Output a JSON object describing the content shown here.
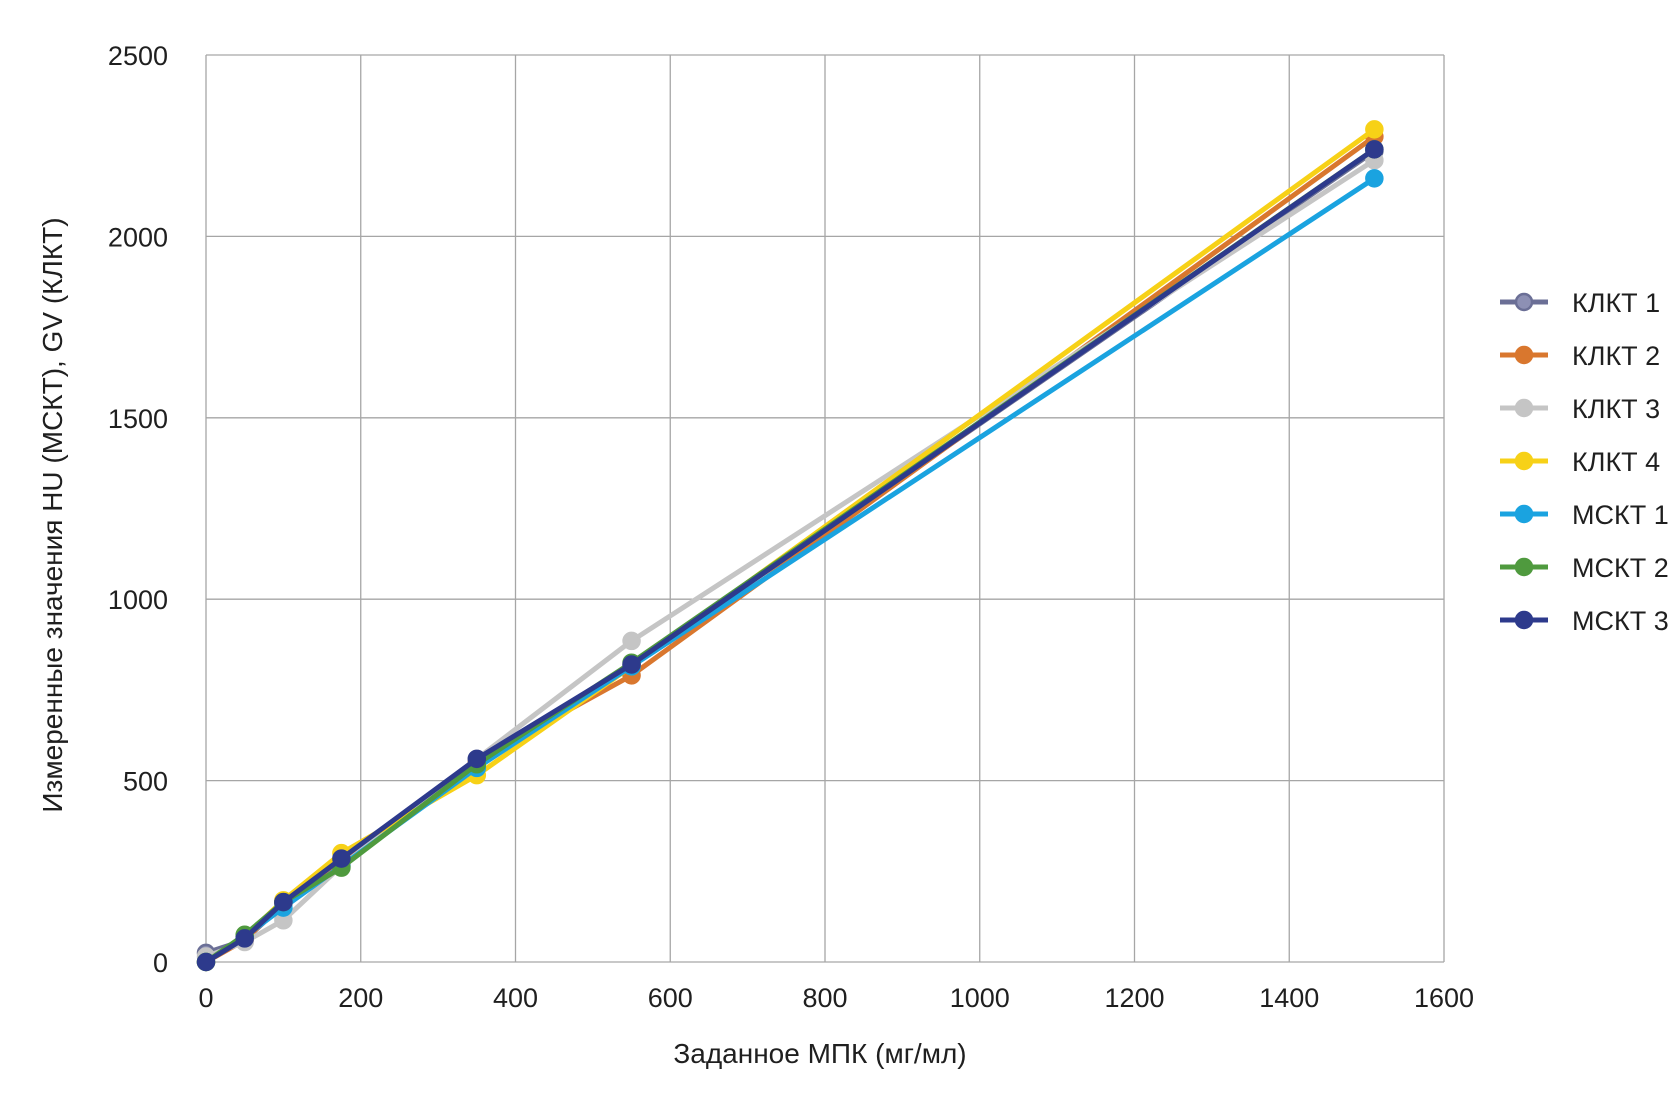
{
  "chart_data": {
    "type": "line",
    "title": "",
    "xlabel": "Заданное МПК (мг/мл)",
    "ylabel": "Измеренные значения HU (МСКТ), GV (КЛКТ)",
    "xlim": [
      0,
      1600
    ],
    "ylim": [
      0,
      2500
    ],
    "x_ticks": [
      "0",
      "200",
      "400",
      "600",
      "800",
      "1000",
      "1200",
      "1400",
      "1600"
    ],
    "y_ticks": [
      "0",
      "500",
      "1000",
      "1500",
      "2000",
      "2500"
    ],
    "grid": true,
    "legend_position": "right",
    "x": [
      0,
      50,
      100,
      175,
      350,
      550,
      1510
    ],
    "series": [
      {
        "name": "КЛКТ 1",
        "color": "#6b6f96",
        "marker_fill": "#8d90b4",
        "values": [
          25,
          60,
          160,
          275,
          555,
          820,
          2235
        ]
      },
      {
        "name": "КЛКТ 2",
        "color": "#d9772e",
        "marker_fill": "#d9772e",
        "values": [
          0,
          60,
          165,
          270,
          555,
          790,
          2275
        ]
      },
      {
        "name": "КЛКТ 3",
        "color": "#c5c5c5",
        "marker_fill": "#c5c5c5",
        "values": [
          15,
          55,
          115,
          265,
          560,
          885,
          2210
        ]
      },
      {
        "name": "КЛКТ 4",
        "color": "#f7d117",
        "marker_fill": "#f7d117",
        "values": [
          0,
          70,
          170,
          300,
          515,
          815,
          2295
        ]
      },
      {
        "name": "МСКТ 1",
        "color": "#1aa3e0",
        "marker_fill": "#1aa3e0",
        "values": [
          0,
          70,
          150,
          265,
          535,
          815,
          2160
        ]
      },
      {
        "name": "МСКТ 2",
        "color": "#4f9a3e",
        "marker_fill": "#4f9a3e",
        "values": [
          0,
          75,
          165,
          260,
          545,
          825,
          2240
        ]
      },
      {
        "name": "МСКТ 3",
        "color": "#2d3a8c",
        "marker_fill": "#2d3a8c",
        "values": [
          0,
          65,
          165,
          285,
          560,
          820,
          2240
        ]
      }
    ]
  }
}
